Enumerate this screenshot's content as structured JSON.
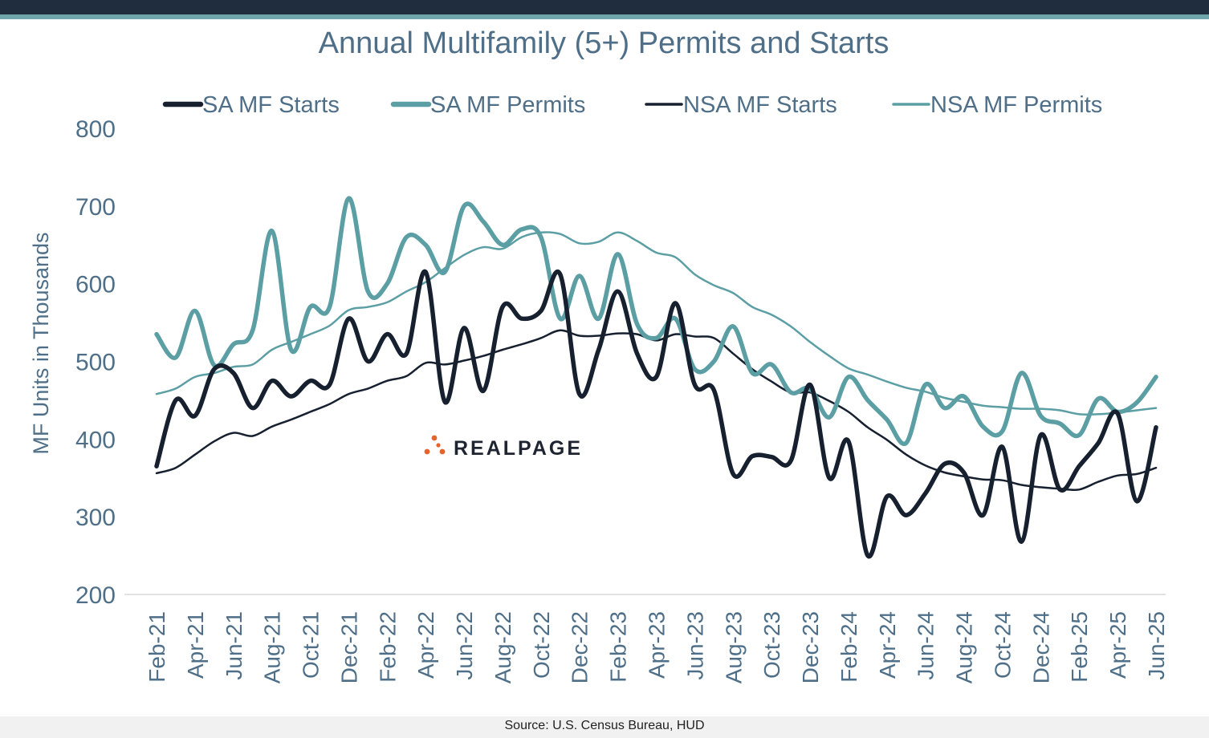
{
  "colors": {
    "dark": "#16202f",
    "teal": "#5b9fa4",
    "axis_text": "#4f6f88",
    "grid": "#d9d9d9",
    "logo_text": "#1e2530",
    "logo_orange": "#e8632b"
  },
  "source": "Source: U.S. Census Bureau, HUD",
  "logo": {
    "text": "REALPAGE"
  },
  "chart_data": {
    "type": "line",
    "title": "Annual Multifamily (5+) Permits and Starts",
    "xlabel": "",
    "ylabel": "MF Units in Thousands",
    "ylim": [
      200,
      800
    ],
    "yticks": [
      200,
      300,
      400,
      500,
      600,
      700,
      800
    ],
    "grid": false,
    "legend": "top",
    "x": [
      "Feb-21",
      "Mar-21",
      "Apr-21",
      "May-21",
      "Jun-21",
      "Jul-21",
      "Aug-21",
      "Sep-21",
      "Oct-21",
      "Nov-21",
      "Dec-21",
      "Jan-22",
      "Feb-22",
      "Mar-22",
      "Apr-22",
      "May-22",
      "Jun-22",
      "Jul-22",
      "Aug-22",
      "Sep-22",
      "Oct-22",
      "Nov-22",
      "Dec-22",
      "Jan-23",
      "Feb-23",
      "Mar-23",
      "Apr-23",
      "May-23",
      "Jun-23",
      "Jul-23",
      "Aug-23",
      "Sep-23",
      "Oct-23",
      "Nov-23",
      "Dec-23",
      "Jan-24",
      "Feb-24",
      "Mar-24",
      "Apr-24",
      "May-24",
      "Jun-24",
      "Jul-24",
      "Aug-24",
      "Sep-24",
      "Oct-24",
      "Nov-24",
      "Dec-24",
      "Jan-25",
      "Feb-25",
      "Mar-25",
      "Apr-25",
      "May-25",
      "Jun-25"
    ],
    "xticks": [
      "Feb-21",
      "Apr-21",
      "Jun-21",
      "Aug-21",
      "Oct-21",
      "Dec-21",
      "Feb-22",
      "Apr-22",
      "Jun-22",
      "Aug-22",
      "Oct-22",
      "Dec-22",
      "Feb-23",
      "Apr-23",
      "Jun-23",
      "Aug-23",
      "Oct-23",
      "Dec-23",
      "Feb-24",
      "Apr-24",
      "Jun-24",
      "Aug-24",
      "Oct-24",
      "Dec-24",
      "Feb-25",
      "Apr-25",
      "Jun-25"
    ],
    "series": [
      {
        "name": "SA MF Starts",
        "color": "#16202f",
        "width": 5.5,
        "values": [
          365,
          450,
          430,
          490,
          485,
          440,
          475,
          455,
          475,
          470,
          555,
          500,
          535,
          510,
          615,
          448,
          543,
          462,
          570,
          555,
          565,
          612,
          458,
          515,
          590,
          510,
          480,
          575,
          470,
          463,
          355,
          378,
          377,
          372,
          470,
          350,
          397,
          250,
          326,
          302,
          330,
          368,
          357,
          302,
          390,
          268,
          405,
          335,
          365,
          395,
          433,
          320,
          415
        ]
      },
      {
        "name": "SA MF Permits",
        "color": "#5b9fa4",
        "width": 5.5,
        "values": [
          535,
          505,
          565,
          495,
          522,
          540,
          668,
          515,
          570,
          570,
          710,
          590,
          600,
          660,
          650,
          615,
          700,
          680,
          650,
          670,
          660,
          555,
          610,
          555,
          638,
          548,
          530,
          555,
          490,
          500,
          545,
          485,
          496,
          460,
          465,
          428,
          480,
          450,
          425,
          395,
          470,
          440,
          455,
          416,
          410,
          485,
          430,
          420,
          405,
          452,
          435,
          447,
          480
        ]
      },
      {
        "name": "NSA MF Starts",
        "color": "#16202f",
        "width": 2.5,
        "values": [
          356,
          363,
          380,
          397,
          408,
          404,
          416,
          425,
          435,
          445,
          458,
          465,
          475,
          481,
          498,
          496,
          501,
          507,
          515,
          522,
          530,
          540,
          533,
          533,
          536,
          535,
          527,
          535,
          532,
          530,
          510,
          490,
          474,
          460,
          460,
          449,
          435,
          415,
          399,
          380,
          366,
          357,
          352,
          348,
          347,
          341,
          338,
          336,
          335,
          345,
          353,
          355,
          363
        ]
      },
      {
        "name": "NSA MF Permits",
        "color": "#5b9fa4",
        "width": 2.5,
        "values": [
          458,
          465,
          480,
          485,
          493,
          496,
          515,
          525,
          535,
          546,
          566,
          570,
          576,
          590,
          602,
          620,
          637,
          647,
          645,
          660,
          666,
          664,
          652,
          654,
          666,
          655,
          640,
          634,
          612,
          598,
          588,
          570,
          560,
          545,
          525,
          507,
          491,
          483,
          474,
          466,
          461,
          453,
          448,
          443,
          441,
          439,
          439,
          437,
          432,
          432,
          434,
          437,
          440
        ]
      }
    ]
  }
}
